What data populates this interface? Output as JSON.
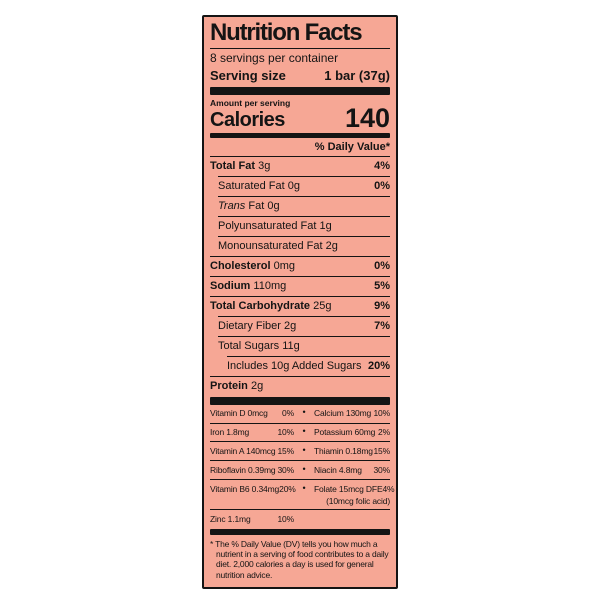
{
  "label": {
    "title": "Nutrition Facts",
    "servings_per_container": "8 servings per container",
    "serving_size_label": "Serving size",
    "serving_size_value": "1 bar (37g)",
    "amount_per_serving": "Amount per serving",
    "calories_label": "Calories",
    "calories_value": "140",
    "daily_value_header": "% Daily Value*",
    "bullet_glyph": "•",
    "nutrients": [
      {
        "name": "Total Fat",
        "amount": "3g",
        "dv": "4%"
      },
      {
        "name": "Saturated Fat",
        "amount": "0g",
        "dv": "0%"
      },
      {
        "italic_prefix": "Trans",
        "name": "Fat",
        "amount": "0g",
        "dv": ""
      },
      {
        "name": "Polyunsaturated Fat",
        "amount": "1g",
        "dv": ""
      },
      {
        "name": "Monounsaturated Fat",
        "amount": "2g",
        "dv": ""
      },
      {
        "name": "Cholesterol",
        "amount": "0mg",
        "dv": "0%"
      },
      {
        "name": "Sodium",
        "amount": "110mg",
        "dv": "5%"
      },
      {
        "name": "Total Carbohydrate",
        "amount": "25g",
        "dv": "9%"
      },
      {
        "name": "Dietary Fiber",
        "amount": "2g",
        "dv": "7%"
      },
      {
        "name": "Total Sugars",
        "amount": "11g",
        "dv": ""
      },
      {
        "name": "Includes 10g Added Sugars",
        "amount": "",
        "dv": "20%"
      },
      {
        "name": "Protein",
        "amount": "2g",
        "dv": ""
      }
    ],
    "micronutrients": [
      {
        "left_name": "Vitamin D 0mcg",
        "left_dv": "0%",
        "right_name": "Calcium 130mg",
        "right_dv": "10%"
      },
      {
        "left_name": "Iron 1.8mg",
        "left_dv": "10%",
        "right_name": "Potassium 60mg",
        "right_dv": "2%"
      },
      {
        "left_name": "Vitamin A 140mcg",
        "left_dv": "15%",
        "right_name": "Thiamin 0.18mg",
        "right_dv": "15%"
      },
      {
        "left_name": "Riboflavin 0.39mg",
        "left_dv": "30%",
        "right_name": "Niacin 4.8mg",
        "right_dv": "30%"
      },
      {
        "left_name": "Vitamin B6 0.34mg",
        "left_dv": "20%",
        "right_name": "Folate 15mcg DFE",
        "right_dv": "4%",
        "right_note": "(10mcg folic acid)"
      },
      {
        "left_name": "Zinc 1.1mg",
        "left_dv": "10%"
      }
    ],
    "footnote": "* The % Daily Value (DV) tells you how much a nutrient in a serving of food contributes to a daily diet. 2,000 calories a day is used for general nutrition advice.",
    "colors": {
      "label_background": "#f6a795",
      "text": "#141414",
      "page_background": "#ffffff"
    }
  }
}
